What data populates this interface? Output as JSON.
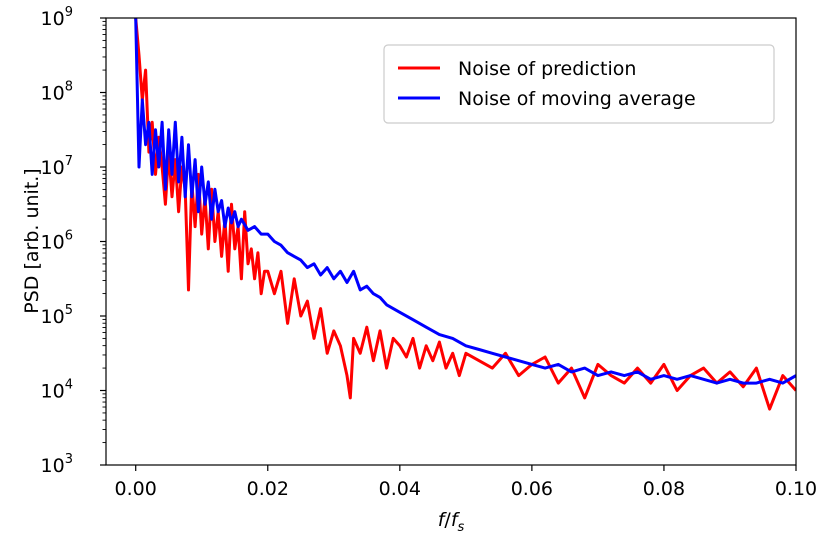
{
  "chart_data": {
    "type": "line",
    "title": "",
    "xlabel": "f/fs",
    "xlabel_parts": {
      "main": "f",
      "slash": "/",
      "base": "f",
      "sub": "s"
    },
    "ylabel": "PSD [arb. unit.]",
    "xlim": [
      -0.0045,
      0.1
    ],
    "ylim_log10": [
      3,
      9
    ],
    "y_scale": "log",
    "xticks": [
      0.0,
      0.02,
      0.04,
      0.06,
      0.08,
      0.1
    ],
    "xtick_labels": [
      "0.00",
      "0.02",
      "0.04",
      "0.06",
      "0.08",
      "0.10"
    ],
    "yticks_exponent": [
      3,
      4,
      5,
      6,
      7,
      8,
      9
    ],
    "ytick_base": "10",
    "grid": false,
    "legend_position": "top-right",
    "series": [
      {
        "name": "Noise of prediction",
        "color": "#ff0000",
        "x": [
          0.0,
          0.0005,
          0.001,
          0.0015,
          0.002,
          0.0025,
          0.003,
          0.0035,
          0.004,
          0.0045,
          0.005,
          0.0055,
          0.006,
          0.0065,
          0.007,
          0.0075,
          0.008,
          0.0085,
          0.009,
          0.0095,
          0.01,
          0.0105,
          0.011,
          0.0115,
          0.012,
          0.0125,
          0.013,
          0.0135,
          0.014,
          0.0145,
          0.015,
          0.0155,
          0.016,
          0.0165,
          0.017,
          0.0175,
          0.018,
          0.0185,
          0.019,
          0.0195,
          0.02,
          0.021,
          0.022,
          0.023,
          0.024,
          0.025,
          0.026,
          0.027,
          0.028,
          0.029,
          0.03,
          0.031,
          0.032,
          0.0325,
          0.033,
          0.034,
          0.035,
          0.036,
          0.037,
          0.038,
          0.039,
          0.04,
          0.041,
          0.042,
          0.043,
          0.044,
          0.045,
          0.046,
          0.047,
          0.048,
          0.049,
          0.05,
          0.052,
          0.054,
          0.056,
          0.058,
          0.06,
          0.062,
          0.064,
          0.066,
          0.068,
          0.07,
          0.072,
          0.074,
          0.076,
          0.078,
          0.08,
          0.082,
          0.084,
          0.086,
          0.088,
          0.09,
          0.092,
          0.094,
          0.096,
          0.098,
          0.1
        ],
        "y_log10": [
          9.0,
          8.5,
          7.9,
          8.3,
          7.2,
          7.6,
          6.9,
          7.4,
          7.0,
          6.5,
          7.2,
          6.6,
          7.1,
          6.4,
          7.0,
          6.7,
          5.35,
          6.8,
          6.2,
          6.9,
          6.1,
          6.6,
          5.9,
          6.7,
          6.0,
          6.4,
          5.8,
          6.3,
          5.6,
          6.5,
          5.9,
          6.2,
          5.5,
          6.4,
          5.7,
          5.9,
          5.5,
          5.85,
          5.3,
          5.6,
          5.6,
          5.3,
          5.6,
          4.9,
          5.5,
          5.0,
          5.2,
          4.7,
          5.1,
          4.5,
          4.8,
          4.6,
          4.2,
          3.9,
          4.7,
          4.5,
          4.85,
          4.4,
          4.8,
          4.3,
          4.7,
          4.6,
          4.45,
          4.7,
          4.3,
          4.6,
          4.4,
          4.65,
          4.3,
          4.5,
          4.2,
          4.5,
          4.4,
          4.3,
          4.5,
          4.2,
          4.35,
          4.45,
          4.1,
          4.3,
          3.9,
          4.35,
          4.2,
          4.1,
          4.3,
          4.1,
          4.35,
          4.0,
          4.2,
          4.3,
          4.1,
          4.25,
          4.05,
          4.3,
          3.75,
          4.2,
          4.0
        ]
      },
      {
        "name": "Noise of moving average",
        "color": "#0000ff",
        "x": [
          0.0,
          0.0005,
          0.001,
          0.0015,
          0.002,
          0.0025,
          0.003,
          0.0035,
          0.004,
          0.0045,
          0.005,
          0.0055,
          0.006,
          0.0065,
          0.007,
          0.0075,
          0.008,
          0.0085,
          0.009,
          0.0095,
          0.01,
          0.0105,
          0.011,
          0.0115,
          0.012,
          0.0125,
          0.013,
          0.0135,
          0.014,
          0.0145,
          0.015,
          0.0155,
          0.016,
          0.017,
          0.018,
          0.019,
          0.02,
          0.021,
          0.022,
          0.023,
          0.024,
          0.025,
          0.026,
          0.027,
          0.028,
          0.029,
          0.03,
          0.031,
          0.032,
          0.033,
          0.034,
          0.035,
          0.036,
          0.037,
          0.038,
          0.039,
          0.04,
          0.042,
          0.044,
          0.046,
          0.048,
          0.05,
          0.052,
          0.054,
          0.056,
          0.058,
          0.06,
          0.062,
          0.064,
          0.066,
          0.068,
          0.07,
          0.072,
          0.074,
          0.076,
          0.078,
          0.08,
          0.082,
          0.084,
          0.086,
          0.088,
          0.09,
          0.092,
          0.094,
          0.096,
          0.098,
          0.1
        ],
        "y_log10": [
          9.0,
          7.0,
          7.9,
          7.3,
          7.6,
          6.9,
          7.5,
          7.0,
          7.6,
          6.7,
          7.5,
          6.9,
          7.6,
          6.8,
          7.4,
          6.6,
          7.3,
          6.6,
          7.1,
          6.4,
          7.0,
          6.5,
          6.8,
          6.3,
          6.7,
          6.4,
          6.55,
          6.2,
          6.45,
          6.25,
          6.4,
          6.2,
          6.3,
          6.15,
          6.2,
          6.1,
          6.1,
          6.0,
          5.95,
          5.85,
          5.8,
          5.75,
          5.65,
          5.7,
          5.55,
          5.65,
          5.5,
          5.6,
          5.45,
          5.6,
          5.35,
          5.4,
          5.3,
          5.25,
          5.15,
          5.1,
          5.05,
          4.95,
          4.85,
          4.75,
          4.7,
          4.6,
          4.55,
          4.5,
          4.45,
          4.4,
          4.35,
          4.3,
          4.35,
          4.25,
          4.3,
          4.2,
          4.25,
          4.2,
          4.25,
          4.15,
          4.2,
          4.15,
          4.2,
          4.15,
          4.1,
          4.15,
          4.1,
          4.1,
          4.15,
          4.1,
          4.2
        ]
      }
    ]
  }
}
